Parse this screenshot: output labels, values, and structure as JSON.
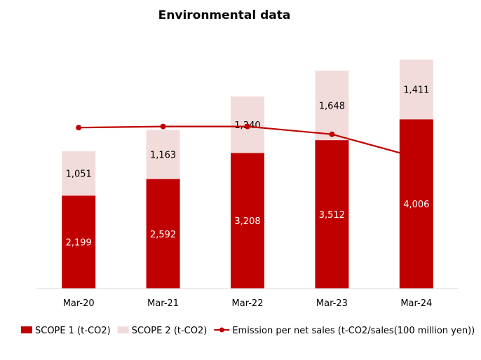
{
  "chart_data": {
    "type": "bar",
    "title": "Environmental data",
    "categories": [
      "Mar-20",
      "Mar-21",
      "Mar-22",
      "Mar-23",
      "Mar-24"
    ],
    "series": [
      {
        "name": "SCOPE 1 (t-CO2)",
        "type": "bar",
        "stacked": true,
        "color": "#c00000",
        "label_color": "#ffffff",
        "values": [
          2199,
          2592,
          3208,
          3512,
          4006
        ],
        "labels": [
          "2,199",
          "2,592",
          "3,208",
          "3,512",
          "4,006"
        ]
      },
      {
        "name": "SCOPE 2 (t-CO2)",
        "type": "bar",
        "stacked": true,
        "color": "#f2dcdb",
        "label_color": "#000000",
        "values": [
          1051,
          1163,
          1340,
          1648,
          1411
        ],
        "labels": [
          "1,051",
          "1,163",
          "1,340",
          "1,648",
          "1,411"
        ]
      },
      {
        "name": "Emission per net sales (t-CO2/sales(100 million yen))",
        "type": "line",
        "color": "#c00000",
        "values": [
          1.46,
          1.47,
          1.47,
          1.4,
          1.19
        ]
      }
    ],
    "ylim": [
      0,
      6000
    ],
    "y2lim": [
      0,
      2.3
    ],
    "grid": false,
    "legend": "bottom"
  }
}
